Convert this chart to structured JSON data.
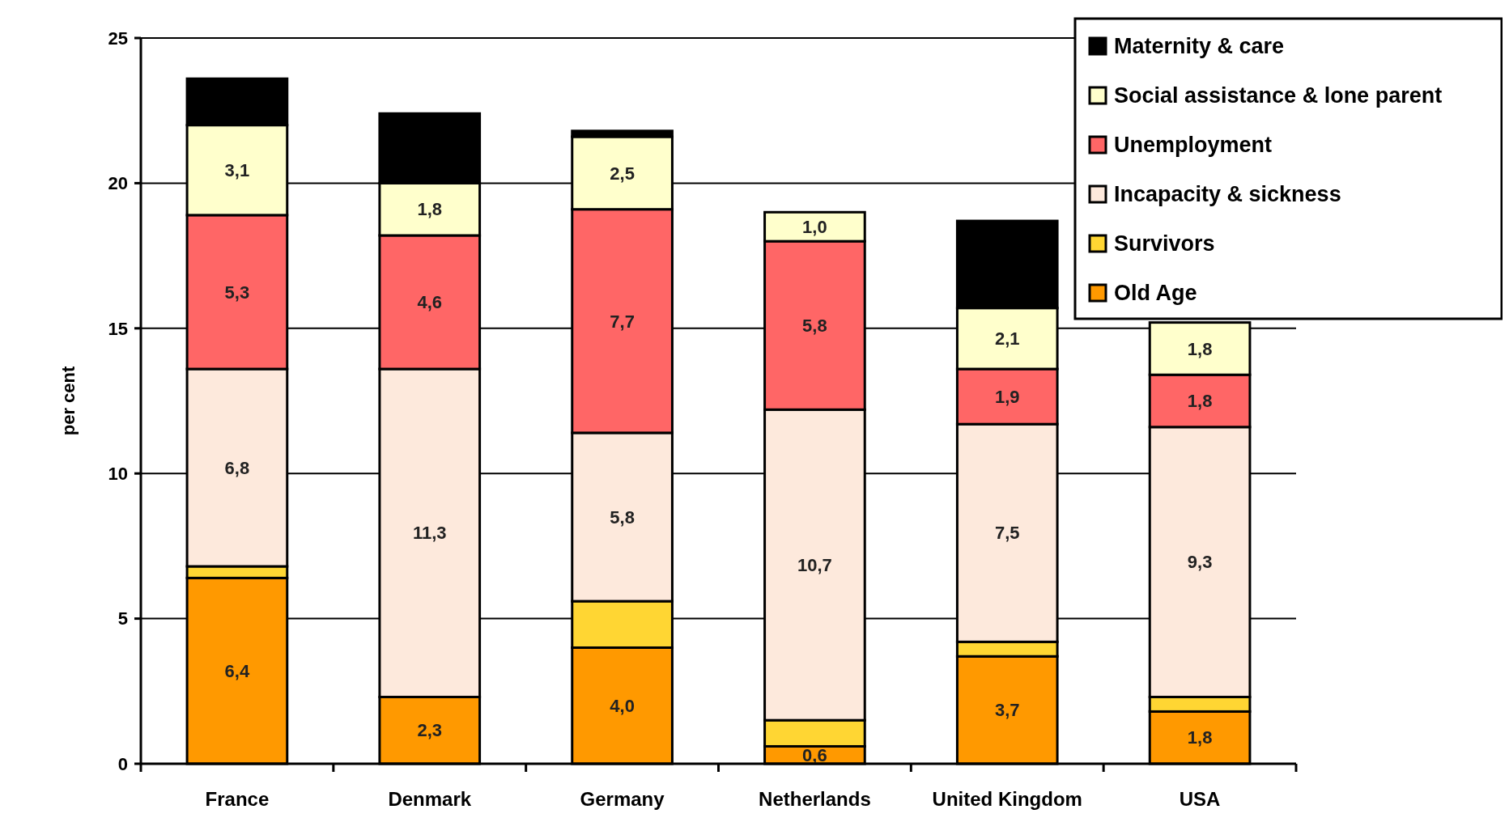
{
  "chart_data": {
    "type": "bar",
    "stacked": true,
    "ylabel": "per cent",
    "categories": [
      "France",
      "Denmark",
      "Germany",
      "Netherlands",
      "United Kingdom",
      "USA"
    ],
    "ylim": [
      0,
      25
    ],
    "yticks": [
      0,
      5,
      10,
      15,
      20,
      25
    ],
    "grid": "y",
    "legend": "top right",
    "series": [
      {
        "name": "Old Age",
        "color": "#ff9900",
        "values": [
          6.4,
          2.3,
          4.0,
          0.6,
          3.7,
          1.8
        ],
        "value_labels": [
          "6,4",
          "2,3",
          "4,0",
          "0,6",
          "3,7",
          "1,8"
        ]
      },
      {
        "name": "Survivors",
        "color": "#ffd633",
        "values": [
          0.4,
          0,
          1.6,
          0.9,
          0.5,
          0.5
        ]
      },
      {
        "name": "Incapacity & sickness",
        "color": "#fde9dc",
        "values": [
          6.8,
          11.3,
          5.8,
          10.7,
          7.5,
          9.3
        ],
        "value_labels": [
          "6,8",
          "11,3",
          "5,8",
          "10,7",
          "7,5",
          "9,3"
        ]
      },
      {
        "name": "Unemployment",
        "color": "#ff6666",
        "values": [
          5.3,
          4.6,
          7.7,
          5.8,
          1.9,
          1.8
        ],
        "value_labels": [
          "5,3",
          "4,6",
          "7,7",
          "5,8",
          "1,9",
          "1,8"
        ]
      },
      {
        "name": "Social assistance & lone parent",
        "color": "#ffffcc",
        "values": [
          3.1,
          1.8,
          2.5,
          1.0,
          2.1,
          1.8
        ],
        "value_labels": [
          "3,1",
          "1,8",
          "2,5",
          "1,0",
          "2,1",
          "1,8"
        ]
      },
      {
        "name": "Maternity & care",
        "color": "#000000",
        "values": [
          1.6,
          2.4,
          0.2,
          0,
          3.0,
          0
        ]
      }
    ]
  }
}
